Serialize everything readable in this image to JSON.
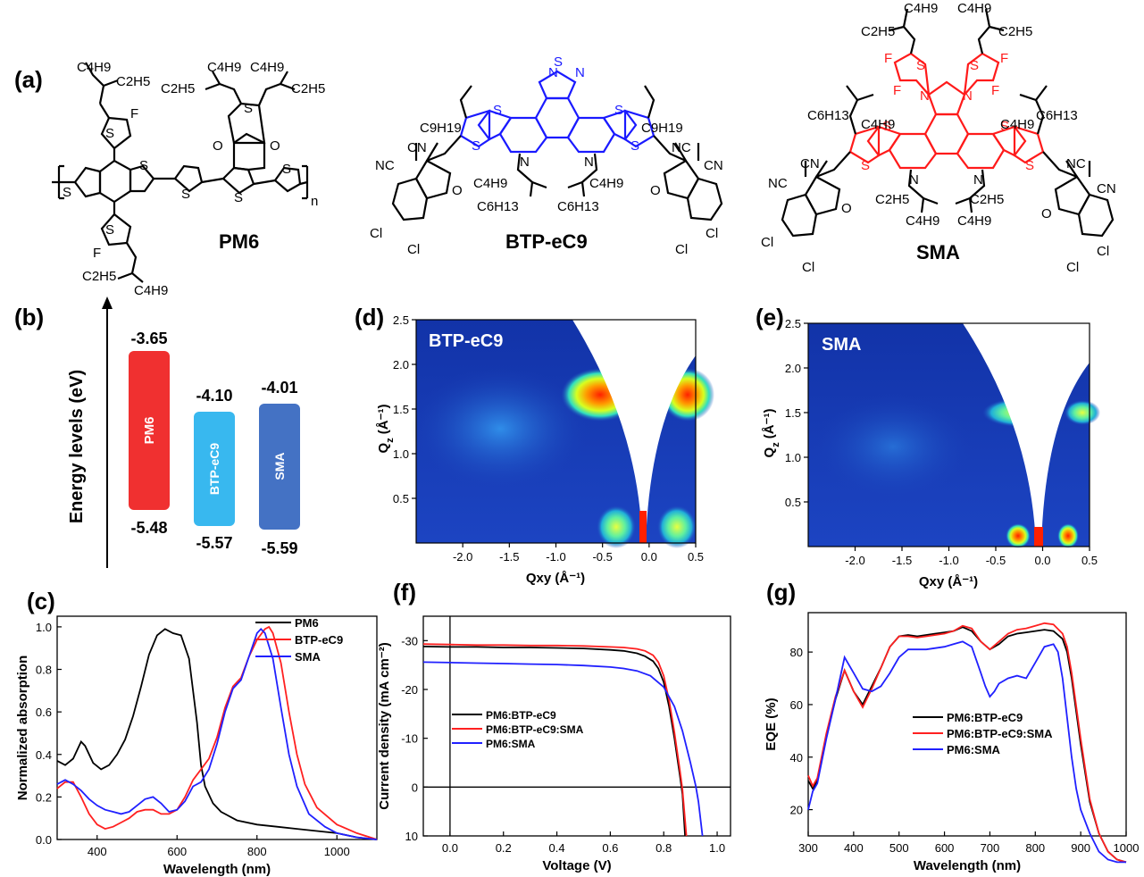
{
  "panel_labels": {
    "a": "(a)",
    "b": "(b)",
    "c": "(c)",
    "d": "(d)",
    "e": "(e)",
    "f": "(f)",
    "g": "(g)"
  },
  "molecules": {
    "pm6": {
      "name": "PM6"
    },
    "btp": {
      "name": "BTP-eC9"
    },
    "sma": {
      "name": "SMA"
    }
  },
  "atom_labels": {
    "S": "S",
    "F": "F",
    "O": "O",
    "N": "N",
    "Cl": "Cl",
    "CN": "CN",
    "NC": "NC",
    "n": "n",
    "C4H9": "C4H9",
    "C2H5": "C2H5",
    "C6H13": "C6H13",
    "C9H19": "C9H19"
  },
  "colors": {
    "pm6": "#000000",
    "btp_core": "#1a1aff",
    "sma_core": "#ff1a1a",
    "bar_pm6": "#f03030",
    "bar_btp": "#38b8ef",
    "bar_sma": "#4472c4",
    "curve_black": "#000000",
    "curve_red": "#ff2020",
    "curve_blue": "#2020ff"
  },
  "energy": {
    "axis_label": "Energy levels (eV)",
    "bars": [
      {
        "name": "PM6",
        "lumo": "-3.65",
        "homo": "-5.48",
        "color": "#f03030"
      },
      {
        "name": "BTP-eC9",
        "lumo": "-4.10",
        "homo": "-5.57",
        "color": "#38b8ef"
      },
      {
        "name": "SMA",
        "lumo": "-4.01",
        "homo": "-5.59",
        "color": "#4472c4"
      }
    ]
  },
  "giwaxs": [
    {
      "label": "BTP-eC9",
      "xlabel": "Qxy (Å⁻¹)",
      "ylabel": "Q",
      "ylabel_sub": "z",
      "ylabel_unit": "(Å⁻¹)",
      "xticks": [
        "-2.0",
        "-1.5",
        "-1.0",
        "-0.5",
        "0.0",
        "0.5"
      ],
      "yticks": [
        "0.5",
        "1.0",
        "1.5",
        "2.0",
        "2.5"
      ]
    },
    {
      "label": "SMA",
      "xlabel": "Qxy (Å⁻¹)",
      "ylabel": "Q",
      "ylabel_sub": "z",
      "ylabel_unit": "(Å⁻¹)",
      "xticks": [
        "-2.0",
        "-1.5",
        "-1.0",
        "-0.5",
        "0.0",
        "0.5"
      ],
      "yticks": [
        "0.5",
        "1.0",
        "1.5",
        "2.0",
        "2.5"
      ]
    }
  ],
  "chart_data": [
    {
      "type": "line",
      "xlabel": "Wavelength (nm)",
      "ylabel": "Normalized absorption",
      "xlim": [
        300,
        1100
      ],
      "ylim": [
        0,
        1.05
      ],
      "xticks": [
        "400",
        "600",
        "800",
        "1000"
      ],
      "yticks": [
        "0.0",
        "0.2",
        "0.4",
        "0.6",
        "0.8",
        "1.0"
      ],
      "legend": "top-right",
      "series": [
        {
          "name": "PM6",
          "color": "#000000",
          "x": [
            300,
            320,
            340,
            360,
            370,
            390,
            410,
            430,
            450,
            470,
            490,
            510,
            530,
            550,
            570,
            590,
            610,
            630,
            650,
            660,
            670,
            690,
            710,
            750,
            800,
            850,
            900,
            950,
            1000,
            1050,
            1100
          ],
          "y": [
            0.37,
            0.35,
            0.38,
            0.46,
            0.44,
            0.36,
            0.33,
            0.35,
            0.4,
            0.47,
            0.58,
            0.72,
            0.87,
            0.96,
            0.99,
            0.97,
            0.96,
            0.85,
            0.55,
            0.35,
            0.25,
            0.17,
            0.13,
            0.09,
            0.07,
            0.06,
            0.05,
            0.04,
            0.03,
            0.01,
            0.0
          ]
        },
        {
          "name": "BTP-eC9",
          "color": "#ff2020",
          "x": [
            300,
            320,
            340,
            360,
            380,
            400,
            420,
            440,
            460,
            480,
            500,
            520,
            540,
            560,
            580,
            600,
            620,
            640,
            660,
            680,
            700,
            720,
            740,
            760,
            780,
            800,
            820,
            830,
            840,
            860,
            880,
            900,
            920,
            950,
            1000,
            1050,
            1100
          ],
          "y": [
            0.24,
            0.27,
            0.27,
            0.2,
            0.12,
            0.07,
            0.05,
            0.06,
            0.08,
            0.1,
            0.13,
            0.14,
            0.14,
            0.12,
            0.12,
            0.14,
            0.2,
            0.28,
            0.33,
            0.38,
            0.48,
            0.62,
            0.72,
            0.76,
            0.86,
            0.94,
            0.99,
            1.0,
            0.97,
            0.83,
            0.6,
            0.4,
            0.26,
            0.15,
            0.07,
            0.03,
            0.0
          ]
        },
        {
          "name": "SMA",
          "color": "#2020ff",
          "x": [
            300,
            320,
            340,
            360,
            380,
            400,
            420,
            440,
            460,
            480,
            500,
            520,
            540,
            560,
            580,
            600,
            620,
            640,
            660,
            680,
            700,
            720,
            740,
            760,
            780,
            800,
            810,
            820,
            840,
            860,
            880,
            900,
            930,
            970,
            1000,
            1050,
            1100
          ],
          "y": [
            0.26,
            0.28,
            0.26,
            0.23,
            0.19,
            0.16,
            0.14,
            0.13,
            0.12,
            0.13,
            0.16,
            0.19,
            0.2,
            0.17,
            0.13,
            0.14,
            0.18,
            0.25,
            0.27,
            0.33,
            0.45,
            0.6,
            0.71,
            0.75,
            0.86,
            0.97,
            0.99,
            0.97,
            0.85,
            0.62,
            0.4,
            0.25,
            0.12,
            0.06,
            0.03,
            0.01,
            0.0
          ]
        }
      ]
    },
    {
      "type": "line",
      "xlabel": "Voltage (V)",
      "ylabel": "Current density (mA cm⁻²)",
      "xlim": [
        -0.1,
        1.05
      ],
      "ylim": [
        10,
        -35
      ],
      "xticks": [
        "0.0",
        "0.2",
        "0.4",
        "0.6",
        "0.8",
        "1.0"
      ],
      "yticks": [
        "-30",
        "-20",
        "-10",
        "0",
        "10"
      ],
      "legend": "center-left",
      "series": [
        {
          "name": "PM6:BTP-eC9",
          "color": "#000000",
          "x": [
            -0.1,
            0,
            0.1,
            0.2,
            0.3,
            0.4,
            0.5,
            0.6,
            0.65,
            0.7,
            0.73,
            0.76,
            0.78,
            0.8,
            0.82,
            0.84,
            0.86,
            0.87,
            0.88
          ],
          "y": [
            -28.8,
            -28.7,
            -28.7,
            -28.6,
            -28.6,
            -28.5,
            -28.4,
            -28.1,
            -27.9,
            -27.4,
            -26.8,
            -25.8,
            -24.3,
            -21.5,
            -16.5,
            -10,
            -2.5,
            1.5,
            10
          ]
        },
        {
          "name": "PM6:BTP-eC9:SMA",
          "color": "#ff2020",
          "x": [
            -0.1,
            0,
            0.1,
            0.2,
            0.3,
            0.4,
            0.5,
            0.6,
            0.65,
            0.7,
            0.73,
            0.76,
            0.78,
            0.8,
            0.82,
            0.84,
            0.86,
            0.87,
            0.885
          ],
          "y": [
            -29.3,
            -29.2,
            -29.1,
            -29.1,
            -29.0,
            -29.0,
            -28.9,
            -28.7,
            -28.6,
            -28.3,
            -27.9,
            -27.0,
            -25.6,
            -22.8,
            -17.8,
            -11.2,
            -3.6,
            0.5,
            10
          ]
        },
        {
          "name": "PM6:SMA",
          "color": "#2020ff",
          "x": [
            -0.1,
            0,
            0.1,
            0.2,
            0.3,
            0.4,
            0.5,
            0.6,
            0.65,
            0.7,
            0.75,
            0.8,
            0.84,
            0.87,
            0.9,
            0.92,
            0.93,
            0.945
          ],
          "y": [
            -25.6,
            -25.5,
            -25.4,
            -25.3,
            -25.2,
            -25.1,
            -24.9,
            -24.6,
            -24.3,
            -23.8,
            -22.8,
            -20.5,
            -16.5,
            -11.5,
            -5,
            -0.2,
            3,
            10
          ]
        }
      ]
    },
    {
      "type": "line",
      "xlabel": "Wavelength (nm)",
      "ylabel": "EQE (%)",
      "xlim": [
        300,
        1000
      ],
      "ylim": [
        10,
        95
      ],
      "xticks": [
        "300",
        "400",
        "500",
        "600",
        "700",
        "800",
        "900",
        "1000"
      ],
      "yticks": [
        "20",
        "40",
        "60",
        "80"
      ],
      "legend": "center-right",
      "series": [
        {
          "name": "PM6:BTP-eC9",
          "color": "#000000",
          "x": [
            300,
            310,
            320,
            340,
            360,
            380,
            400,
            420,
            440,
            460,
            480,
            500,
            520,
            540,
            560,
            580,
            600,
            620,
            640,
            660,
            680,
            700,
            720,
            740,
            760,
            780,
            800,
            820,
            840,
            860,
            870,
            880,
            900,
            920,
            940,
            960,
            980,
            1000
          ],
          "y": [
            31,
            28,
            31,
            48,
            62,
            73,
            65,
            60,
            67,
            74,
            82,
            86,
            86.5,
            86,
            86.5,
            87,
            87.5,
            88,
            89.5,
            88,
            84,
            81,
            83,
            86,
            87,
            87.5,
            88,
            88.5,
            88,
            85,
            80,
            70,
            45,
            23,
            11,
            4,
            1,
            0
          ]
        },
        {
          "name": "PM6:BTP-eC9:SMA",
          "color": "#ff2020",
          "x": [
            300,
            310,
            320,
            340,
            360,
            380,
            400,
            420,
            440,
            460,
            480,
            500,
            520,
            540,
            560,
            580,
            600,
            620,
            640,
            660,
            680,
            700,
            720,
            740,
            760,
            780,
            800,
            820,
            840,
            860,
            870,
            880,
            900,
            920,
            940,
            960,
            980,
            1000
          ],
          "y": [
            33,
            29,
            32,
            49,
            63,
            73,
            65,
            59,
            66,
            74,
            82,
            86,
            86,
            85.5,
            86,
            86.5,
            87,
            88,
            90,
            89,
            84,
            81,
            84,
            87,
            88.5,
            89,
            90,
            91,
            90.5,
            87,
            82,
            72,
            47,
            24,
            11,
            4,
            1,
            0
          ]
        },
        {
          "name": "PM6:SMA",
          "color": "#2020ff",
          "x": [
            300,
            310,
            320,
            340,
            360,
            380,
            400,
            420,
            440,
            460,
            480,
            500,
            520,
            540,
            560,
            580,
            600,
            620,
            640,
            660,
            680,
            690,
            700,
            710,
            720,
            740,
            760,
            780,
            800,
            820,
            840,
            850,
            860,
            870,
            880,
            890,
            900,
            920,
            940,
            960,
            980,
            1000
          ],
          "y": [
            20,
            27,
            30,
            47,
            62,
            78,
            72,
            66,
            65,
            67,
            72,
            78,
            81,
            81,
            81,
            81.5,
            82,
            83,
            84,
            82,
            72,
            67,
            63,
            65,
            68,
            70,
            71,
            70,
            76,
            82,
            83,
            80,
            70,
            55,
            40,
            28,
            20,
            11,
            4,
            1,
            0,
            0
          ]
        }
      ]
    }
  ]
}
